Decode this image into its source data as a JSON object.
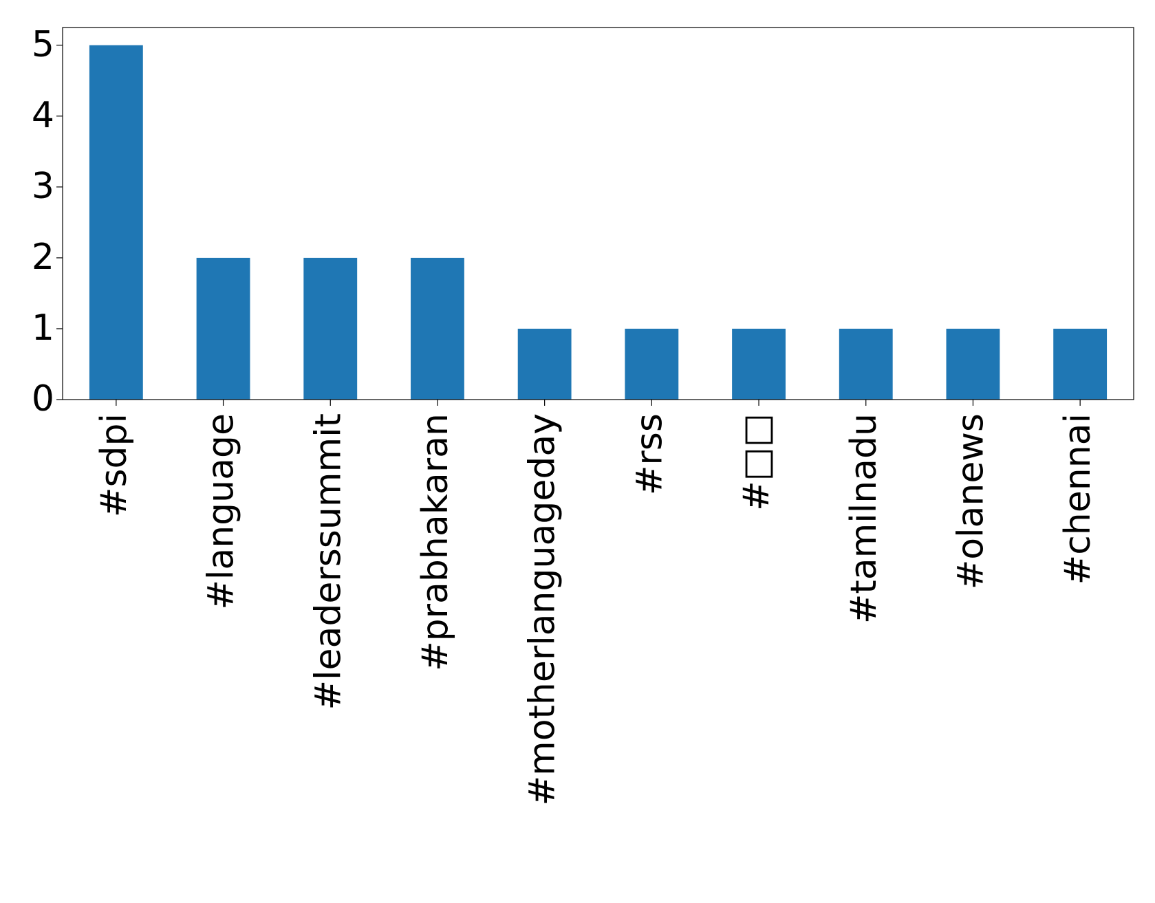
{
  "chart_data": {
    "type": "bar",
    "categories": [
      "#sdpi",
      "#language",
      "#leaderssummit",
      "#prabhakaran",
      "#motherlanguageday",
      "#rss",
      "#□□",
      "#tamilnadu",
      "#olanews",
      "#chennai"
    ],
    "values": [
      5,
      2,
      2,
      2,
      1,
      1,
      1,
      1,
      1,
      1
    ],
    "color": "#1f77b4",
    "ylim": [
      0,
      5.25
    ],
    "yticks": [
      0,
      1,
      2,
      3,
      4,
      5
    ],
    "grid": false
  }
}
